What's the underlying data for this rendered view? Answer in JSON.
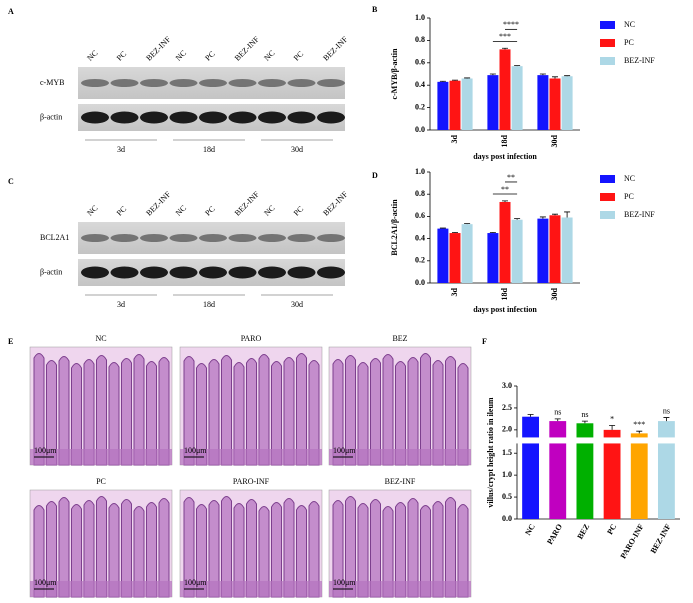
{
  "panel_labels": [
    "A",
    "B",
    "C",
    "D",
    "E",
    "F"
  ],
  "blots": [
    {
      "lanes": [
        "NC",
        "PC",
        "BEZ-INF",
        "NC",
        "PC",
        "BEZ-INF",
        "NC",
        "PC",
        "BEZ-INF"
      ],
      "rows": [
        "c-MYB",
        "β-actin"
      ],
      "groups": [
        "3d",
        "18d",
        "30d"
      ]
    },
    {
      "lanes": [
        "NC",
        "PC",
        "BEZ-INF",
        "NC",
        "PC",
        "BEZ-INF",
        "NC",
        "PC",
        "BEZ-INF"
      ],
      "rows": [
        "BCL2A1",
        "β-actin"
      ],
      "groups": [
        "3d",
        "18d",
        "30d"
      ]
    }
  ],
  "histology": {
    "panels": [
      "NC",
      "PARO",
      "BEZ",
      "PC",
      "PARO-INF",
      "BEZ-INF"
    ],
    "scale_bar": "100μm"
  },
  "chart_data": [
    {
      "type": "bar",
      "ylabel": "c-MYB/β-actin",
      "xlabel": "days post infection",
      "categories": [
        "3d",
        "18d",
        "30d"
      ],
      "series": [
        {
          "name": "NC",
          "color": "#1414ff",
          "values": [
            0.43,
            0.49,
            0.49
          ],
          "errors": [
            0.005,
            0.01,
            0.01
          ]
        },
        {
          "name": "PC",
          "color": "#ff1414",
          "values": [
            0.44,
            0.72,
            0.46
          ],
          "errors": [
            0.005,
            0.01,
            0.015
          ]
        },
        {
          "name": "BEZ-INF",
          "color": "#add8e6",
          "values": [
            0.46,
            0.57,
            0.48
          ],
          "errors": [
            0.005,
            0.005,
            0.005
          ]
        }
      ],
      "ylim": [
        0,
        1.0
      ],
      "yticks": [
        {
          "value": 0,
          "label": "0.0"
        },
        0.2,
        0.4,
        0.6,
        0.8,
        {
          "value": 1.0,
          "label": "1.0"
        }
      ],
      "legend": "right",
      "annotations": [
        "***",
        "****"
      ]
    },
    {
      "type": "bar",
      "ylabel": "BCL2A1/β-actin",
      "xlabel": "days post infection",
      "categories": [
        "3d",
        "18d",
        "30d"
      ],
      "series": [
        {
          "name": "NC",
          "color": "#1414ff",
          "values": [
            0.49,
            0.45,
            0.58
          ],
          "errors": [
            0.005,
            0.005,
            0.015
          ]
        },
        {
          "name": "PC",
          "color": "#ff1414",
          "values": [
            0.45,
            0.73,
            0.61
          ],
          "errors": [
            0.005,
            0.01,
            0.01
          ]
        },
        {
          "name": "BEZ-INF",
          "color": "#add8e6",
          "values": [
            0.53,
            0.57,
            0.59
          ],
          "errors": [
            0.005,
            0.01,
            0.05
          ]
        }
      ],
      "ylim": [
        0,
        1.0
      ],
      "yticks": [
        {
          "value": 0,
          "label": "0.0"
        },
        0.2,
        0.4,
        0.6,
        0.8,
        {
          "value": 1.0,
          "label": "1.0"
        }
      ],
      "legend": "right",
      "annotations": [
        "**",
        "**"
      ]
    },
    {
      "type": "column",
      "ylabel": "villus/crypt height ratio in ileum",
      "categories": [
        "NC",
        "PARO",
        "BEZ",
        "PC",
        "PARO-INF",
        "BEZ-INF"
      ],
      "values": [
        2.3,
        2.2,
        2.15,
        2.0,
        1.92,
        2.2
      ],
      "errors": [
        0.05,
        0.05,
        0.05,
        0.1,
        0.05,
        0.08
      ],
      "colors": [
        "#1414ff",
        "#c000c0",
        "#00b000",
        "#ff1414",
        "#ffa500",
        "#add8e6"
      ],
      "annotations": [
        null,
        "ns",
        "ns",
        "*",
        "***",
        "ns"
      ],
      "ylim": [
        0,
        3.0
      ],
      "axis_break": [
        1.7,
        1.85
      ],
      "yticks": [
        {
          "value": 0,
          "label": "0.0"
        },
        0.5,
        {
          "value": 1.0,
          "label": "1.0"
        },
        1.5,
        {
          "value": 2.0,
          "label": "2.0"
        },
        2.5,
        {
          "value": 3.0,
          "label": "3.0"
        }
      ]
    }
  ]
}
